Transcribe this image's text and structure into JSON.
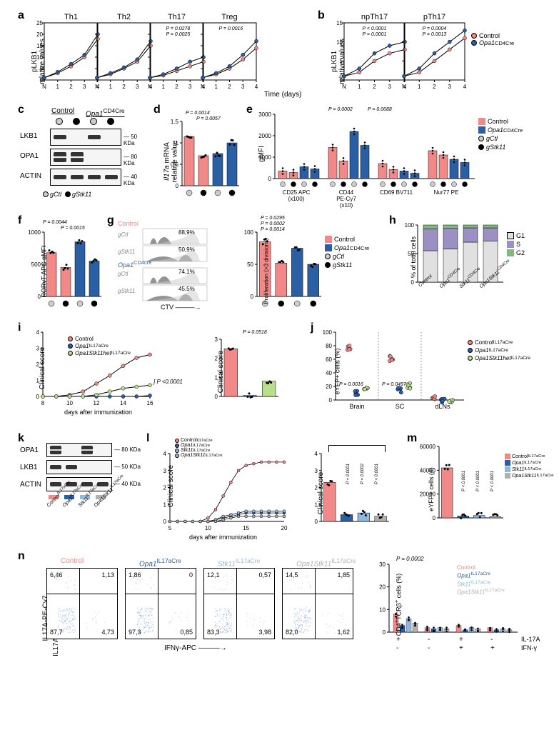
{
  "colors": {
    "control": "#f28989",
    "opa1": "#2b5fa3",
    "opa1stk11het": "#b8e08a",
    "stk11": "#8fb8e0",
    "opa1stk11": "#b0b0b0",
    "gctl": "#cccccc",
    "gstk11": "#000000",
    "grid": "#e0e0e0",
    "g1": "#e0e0e0",
    "s": "#9b8fc4",
    "g2": "#7eba7e"
  },
  "panel_a": {
    "label": "a",
    "ylabel": "pLKB1\nrelative values",
    "xlabel": "Time (days)",
    "ylim": [
      0,
      25
    ],
    "ytick_step": 5,
    "xticks": [
      "N",
      "1",
      "2",
      "3",
      "4"
    ],
    "subplots": [
      {
        "title": "Th1",
        "control": [
          1,
          3,
          6,
          10,
          18
        ],
        "opa1": [
          1,
          3.5,
          7,
          11,
          20
        ]
      },
      {
        "title": "Th2",
        "control": [
          1,
          2.5,
          5,
          8,
          15
        ],
        "opa1": [
          1,
          3,
          5.5,
          9,
          17
        ]
      },
      {
        "title": "Th17",
        "control": [
          1,
          2,
          4,
          6,
          8
        ],
        "opa1": [
          1,
          2.5,
          5,
          8,
          10
        ],
        "pvals": [
          "P = 0.0278",
          "P = 0.0025"
        ]
      },
      {
        "title": "Treg",
        "control": [
          1,
          2.5,
          5,
          9,
          14
        ],
        "opa1": [
          1,
          3,
          6,
          11,
          17
        ],
        "pvals": [
          "P = 0.0016"
        ]
      }
    ]
  },
  "panel_b": {
    "label": "b",
    "ylabel": "pLKB1\nrelative values",
    "ylim": [
      0,
      15
    ],
    "ytick_step": 5,
    "xticks": [
      "N",
      "1",
      "2",
      "3",
      "4"
    ],
    "subplots": [
      {
        "title": "npTh17",
        "control": [
          1,
          2,
          5,
          7,
          8
        ],
        "opa1": [
          1,
          3,
          7,
          9,
          10
        ],
        "pvals": [
          "P < 0.0001",
          "P = 0.0001"
        ]
      },
      {
        "title": "pTh17",
        "control": [
          1,
          2,
          5,
          8,
          11
        ],
        "opa1": [
          1,
          3,
          7,
          10,
          13
        ],
        "pvals": [
          "P = 0.0004",
          "P = 0.0013"
        ]
      }
    ],
    "legend": [
      "Control",
      "Opa1^CD4Cre"
    ]
  },
  "panel_c": {
    "label": "c",
    "header_left": "Control",
    "header_right": "Opa1^CD4Cre",
    "gctl": "gCtl",
    "gstk11": "gStk11",
    "rows": [
      {
        "name": "LKB1",
        "mw": "50 KDa"
      },
      {
        "name": "OPA1",
        "mw": "80 KDa"
      },
      {
        "name": "ACTIN",
        "mw": "40 KDa"
      }
    ]
  },
  "panel_d": {
    "label": "d",
    "ylabel": "Il17a mRNA\nrelative value",
    "ylim": [
      0,
      1.5
    ],
    "ytick_step": 0.5,
    "bars": [
      {
        "v": 1.15,
        "c": "control"
      },
      {
        "v": 0.7,
        "c": "control"
      },
      {
        "v": 0.75,
        "c": "opa1"
      },
      {
        "v": 1.0,
        "c": "opa1"
      }
    ],
    "pvals": [
      "P = 0.0014",
      "P = 0.0057"
    ]
  },
  "panel_e": {
    "label": "e",
    "ylabel": "gMFI",
    "ylim": [
      0,
      3000
    ],
    "ytick_step": 1000,
    "groups": [
      "CD25 APC\n(x100)",
      "CD44\nPE-Cy7\n(x10)",
      "CD69 BV711",
      "Nur77 PE"
    ],
    "pvals": [
      "P = 0.0002",
      "P = 0.0088"
    ],
    "legend": [
      "Control",
      "Opa1^CD4Cre",
      "gCtl",
      "gStk11"
    ],
    "values": {
      "CD25": [
        350,
        280,
        550,
        450
      ],
      "CD44": [
        1450,
        820,
        2200,
        1550
      ],
      "CD69": [
        700,
        420,
        350,
        250
      ],
      "Nur77": [
        1300,
        1100,
        900,
        750
      ]
    }
  },
  "panel_f": {
    "label": "f",
    "ylabel": "RORγT APC gMFI",
    "ylim": [
      0,
      1000
    ],
    "ytick_step": 500,
    "bars": [
      {
        "v": 680,
        "c": "control"
      },
      {
        "v": 450,
        "c": "control"
      },
      {
        "v": 850,
        "c": "opa1"
      },
      {
        "v": 550,
        "c": "opa1"
      }
    ],
    "pvals": [
      "P = 0.0044",
      "P = 0.0015"
    ]
  },
  "panel_g": {
    "label": "g",
    "histo": {
      "groups": [
        "Control",
        "Opa1^CD4cre"
      ],
      "labels": [
        "gCtl",
        "gStk11"
      ],
      "pcts": [
        "88,9%",
        "50,9%",
        "74,1%",
        "45,5%"
      ],
      "xlabel": "CTV"
    },
    "bar": {
      "ylabel": "Proliferation (>3 divisions)",
      "ylim": [
        0,
        100
      ],
      "ytick_step": 50,
      "bars": [
        {
          "v": 85,
          "c": "control"
        },
        {
          "v": 52,
          "c": "control"
        },
        {
          "v": 75,
          "c": "opa1"
        },
        {
          "v": 50,
          "c": "opa1"
        }
      ],
      "pvals": [
        "P = 0.0295",
        "P = 0.0002",
        "P = 0.0014"
      ],
      "legend": [
        "Control",
        "Opa1^CD4Cre",
        "gCtl",
        "gStk11"
      ]
    }
  },
  "panel_h": {
    "label": "h",
    "ylabel": "% of total cells",
    "ylim": [
      0,
      100
    ],
    "ytick_step": 50,
    "xcats": [
      "Control",
      "Opa1^CD4Cre",
      "Stk11^CD4Cre",
      "Opa1Stk11^CD4Cre"
    ],
    "stacks": [
      {
        "g1": 55,
        "s": 38,
        "g2": 7
      },
      {
        "g1": 58,
        "s": 36,
        "g2": 6
      },
      {
        "g1": 70,
        "s": 25,
        "g2": 5
      },
      {
        "g1": 72,
        "s": 23,
        "g2": 5
      }
    ],
    "legend": [
      "G1",
      "S",
      "G2"
    ]
  },
  "panel_i": {
    "label": "i",
    "ylabel": "Clinical score",
    "xlabel": "days after immunization",
    "ylim": [
      0,
      4
    ],
    "ytick_step": 1,
    "xrange": [
      8,
      16
    ],
    "series": {
      "control": [
        0,
        0,
        0.1,
        0.3,
        0.8,
        1.3,
        1.9,
        2.4,
        2.6
      ],
      "opa1": [
        0,
        0,
        0,
        0,
        0,
        0,
        0,
        0,
        0.05
      ],
      "het": [
        0,
        0,
        0,
        0,
        0.1,
        0.3,
        0.5,
        0.6,
        0.7
      ]
    },
    "legend": [
      "Control",
      "Opa1^IL17aCre",
      "Opa1Stk11het^IL17aCre"
    ],
    "pline": "P <0.0001",
    "bar": {
      "ylabel": "Clinical score",
      "ylim": [
        0,
        3
      ],
      "bars": [
        {
          "v": 2.5,
          "c": "control"
        },
        {
          "v": 0.05,
          "c": "opa1"
        },
        {
          "v": 0.8,
          "c": "opa1stk11het"
        }
      ],
      "pval": "P = 0.0518"
    }
  },
  "panel_j": {
    "label": "j",
    "ylabel": "eYFP+ cells (%)",
    "ylim": [
      0,
      100
    ],
    "ytick_step": 20,
    "xcats": [
      "Brain",
      "SC",
      "dLNs"
    ],
    "legend": [
      "Control^IL17aCre",
      "Opa1^IL17aCre",
      "Opa1Stk11het^IL17aCre"
    ],
    "pvals": [
      "P = 0.0016",
      "P = 0.0497"
    ]
  },
  "panel_k": {
    "label": "k",
    "rows": [
      {
        "name": "OPA1",
        "mw": "80 KDa"
      },
      {
        "name": "LKB1",
        "mw": "50 KDa"
      },
      {
        "name": "ACTIN",
        "mw": "40 KDa"
      }
    ],
    "lanes": [
      "Control^IL17aCre",
      "Opa1^IL17aCre",
      "Stk11^IL17aCre",
      "Opa1Stk11^IL17aCre"
    ]
  },
  "panel_l": {
    "label": "l",
    "ylabel": "Clinical score",
    "xlabel": "days after immunization",
    "ylim": [
      0,
      4
    ],
    "ytick_step": 1,
    "xrange": [
      5,
      20
    ],
    "legend": [
      "Control^Il17aCre",
      "Opa1^IL17aCre",
      "Stk11^IL17aCre",
      "Opa1Stk11^IL17aCre"
    ],
    "series": {
      "control": [
        0,
        0,
        0,
        0,
        0,
        0.2,
        0.7,
        1.5,
        2.3,
        3.0,
        3.3,
        3.4,
        3.5,
        3.5,
        3.5,
        3.5
      ],
      "opa1": [
        0,
        0,
        0,
        0,
        0,
        0,
        0.1,
        0.2,
        0.3,
        0.4,
        0.5,
        0.5,
        0.5,
        0.5,
        0.5,
        0.5
      ],
      "stk11": [
        0,
        0,
        0,
        0,
        0,
        0,
        0.1,
        0.3,
        0.4,
        0.5,
        0.6,
        0.6,
        0.6,
        0.6,
        0.6,
        0.6
      ],
      "opa1stk11": [
        0,
        0,
        0,
        0,
        0,
        0,
        0,
        0.1,
        0.2,
        0.3,
        0.3,
        0.3,
        0.3,
        0.3,
        0.3,
        0.3
      ]
    },
    "bar": {
      "ylabel": "Clinical score",
      "ylim": [
        0,
        4
      ],
      "bars": [
        {
          "v": 2.3,
          "c": "control"
        },
        {
          "v": 0.4,
          "c": "opa1"
        },
        {
          "v": 0.5,
          "c": "stk11"
        },
        {
          "v": 0.3,
          "c": "opa1stk11"
        }
      ],
      "pvals": [
        "P = 0.0001",
        "P = 0.0002",
        "P < 0.0001"
      ]
    }
  },
  "panel_m": {
    "label": "m",
    "ylabel": "eYFP+ cells (#)",
    "ylim": [
      0,
      60000
    ],
    "ytick_step": 20000,
    "bars": [
      {
        "v": 42000,
        "c": "control"
      },
      {
        "v": 1500,
        "c": "opa1"
      },
      {
        "v": 2000,
        "c": "stk11"
      },
      {
        "v": 1000,
        "c": "opa1stk11"
      }
    ],
    "legend": [
      "Control^IL17aCre",
      "Opa1^IL17aCre",
      "Stk11^IL17aCre",
      "Opa1Stk11^IL17aCre"
    ],
    "pvals": [
      "P < 0.0001",
      "P < 0.0001",
      "P < 0.0001"
    ]
  },
  "panel_n": {
    "label": "n",
    "ylabel": "IL17A-PE-Cv7",
    "xlabel": "IFNγ-APC",
    "groups": [
      "Control",
      "Opa1^IL17aCre",
      "Stk11^IL17aCre",
      "Opa1Stk11^IL17aCre"
    ],
    "quads": [
      [
        "6,46",
        "1,13",
        "87,7",
        "4,73"
      ],
      [
        "1,86",
        "0",
        "97,3",
        "0,85"
      ],
      [
        "12,1",
        "0,57",
        "83,3",
        "3,98"
      ],
      [
        "14,5",
        "1,85",
        "82,0",
        "1,62"
      ]
    ],
    "bar": {
      "ylabel": "CD4+TCRβ+ cells (%)",
      "ylim": [
        0,
        30
      ],
      "ytick_step": 10,
      "pval": "P = 0.0002",
      "legend": [
        "Control",
        "Opa1^IL17aCre",
        "Stk11^IL17aCre",
        "Opa1Stk11^IL17aCre"
      ],
      "xlabels": [
        [
          "+",
          "-"
        ],
        [
          "-",
          "-"
        ],
        [
          "+",
          "+"
        ],
        [
          "-",
          "+"
        ]
      ],
      "xlabel_left": [
        "IL-17A",
        "IFN-γ"
      ]
    }
  }
}
